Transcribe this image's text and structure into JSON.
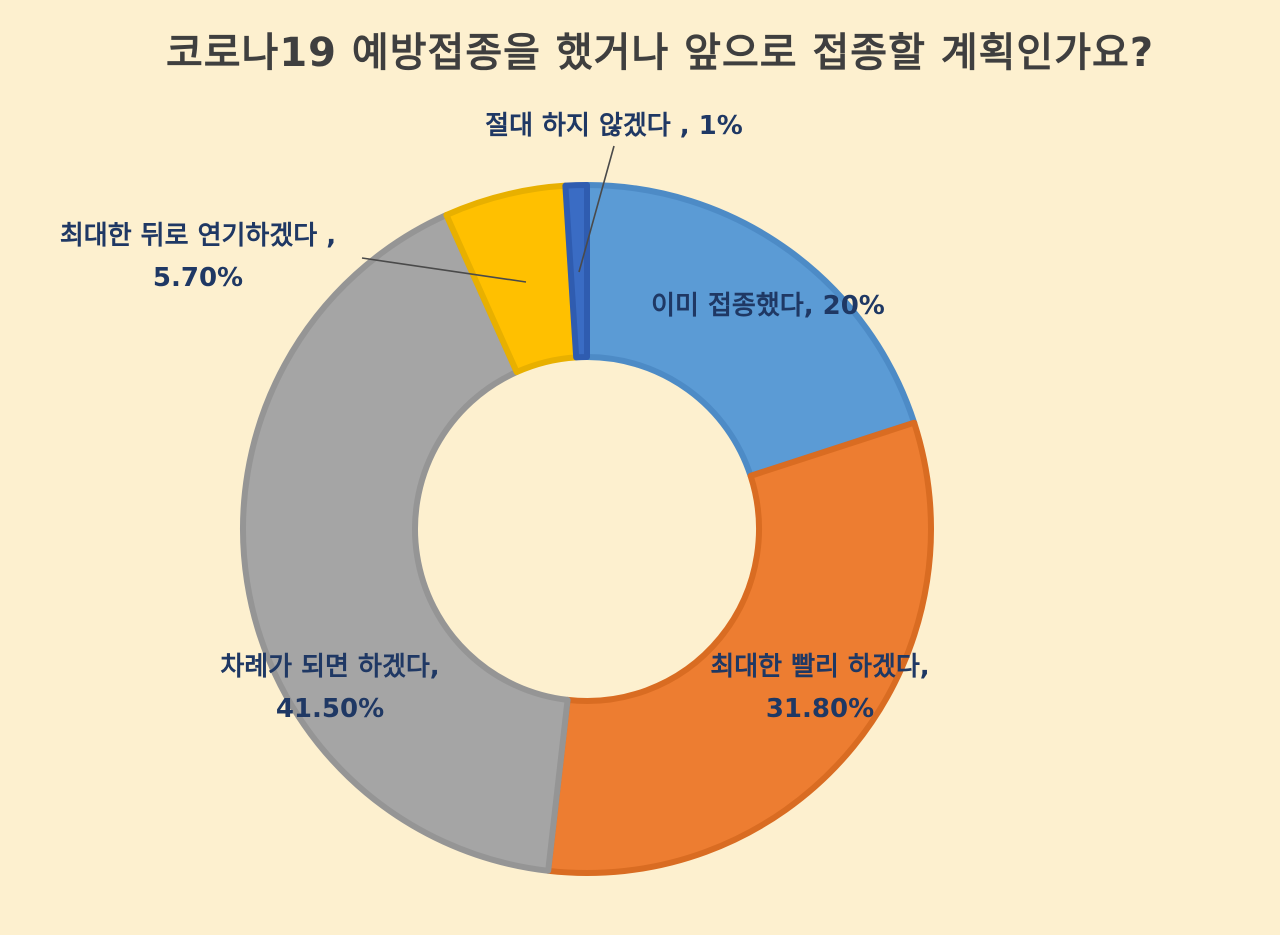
{
  "chart_data": {
    "type": "pie",
    "title": "코로나19 예방접종을 했거나 앞으로 접종할 계획인가요?",
    "donut": true,
    "legend": "none",
    "categories": [
      "이미 접종했다",
      "최대한 빨리 하겠다",
      "차례가 되면 하겠다",
      "최대한 뒤로 연기하겠다",
      "절대 하지 않겠다"
    ],
    "values": [
      20,
      31.8,
      41.5,
      5.7,
      1
    ],
    "slices": [
      {
        "name": "이미 접종했다",
        "value": 20,
        "label_lines": [
          "이미 접종했다, 20%"
        ],
        "color": "#5b9bd5",
        "edge": "#4d8bc6"
      },
      {
        "name": "최대한 빨리 하겠다",
        "value": 31.8,
        "label_lines": [
          "최대한 빨리 하겠다,",
          "31.80%"
        ],
        "color": "#ed7d31",
        "edge": "#d96c22"
      },
      {
        "name": "차례가 되면 하겠다",
        "value": 41.5,
        "label_lines": [
          "차례가 되면 하겠다,",
          "41.50%"
        ],
        "color": "#a5a5a5",
        "edge": "#959595"
      },
      {
        "name": "최대한 뒤로 연기하겠다",
        "value": 5.7,
        "label_lines": [
          "최대한 뒤로 연기하겠다 ,",
          "5.70%"
        ],
        "color": "#ffc000",
        "edge": "#e8b000"
      },
      {
        "name": "절대 하지 않겠다",
        "value": 1,
        "label_lines": [
          "절대 하지 않겠다 , 1%"
        ],
        "color": "#3a6cc4",
        "edge": "#2f5cb0"
      }
    ],
    "colors": {
      "background": "#fdf0cf",
      "label_text": "#1f3864",
      "title_text": "#3f3f3f"
    }
  }
}
